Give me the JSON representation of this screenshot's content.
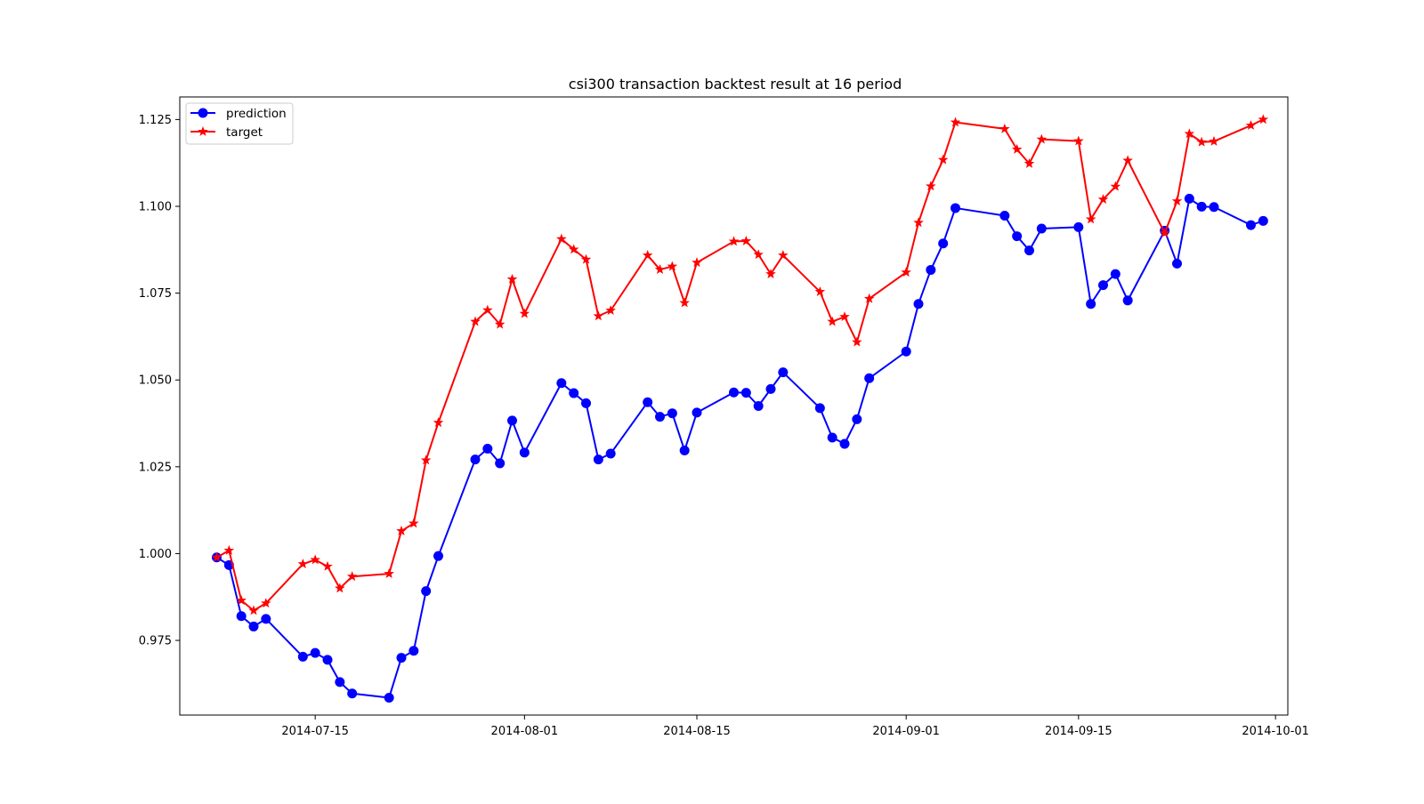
{
  "chart_data": {
    "type": "line",
    "title": "csi300 transaction backtest result at 16 period",
    "xlabel": "",
    "ylabel": "",
    "x_axis_type": "date",
    "xlim": [
      "2014-07-04",
      "2014-10-02"
    ],
    "ylim": [
      0.9535,
      1.1315
    ],
    "x_ticks": [
      "2014-07-15",
      "2014-08-01",
      "2014-08-15",
      "2014-09-01",
      "2014-09-15",
      "2014-10-01"
    ],
    "y_ticks": [
      "0.975",
      "1.000",
      "1.025",
      "1.050",
      "1.075",
      "1.100",
      "1.125"
    ],
    "grid": false,
    "legend": {
      "placement": "top-left",
      "entries": [
        "prediction",
        "target"
      ]
    },
    "colors": {
      "prediction": "#0000ff",
      "target": "#ff0000"
    },
    "series": [
      {
        "name": "prediction",
        "marker": "circle",
        "points": [
          [
            "2014-07-07",
            0.9989
          ],
          [
            "2014-07-08",
            0.9967
          ],
          [
            "2014-07-09",
            0.982
          ],
          [
            "2014-07-10",
            0.979
          ],
          [
            "2014-07-11",
            0.9812
          ],
          [
            "2014-07-14",
            0.9703
          ],
          [
            "2014-07-15",
            0.9714
          ],
          [
            "2014-07-16",
            0.9694
          ],
          [
            "2014-07-17",
            0.963
          ],
          [
            "2014-07-18",
            0.9597
          ],
          [
            "2014-07-21",
            0.9585
          ],
          [
            "2014-07-22",
            0.97
          ],
          [
            "2014-07-23",
            0.972
          ],
          [
            "2014-07-24",
            0.9892
          ],
          [
            "2014-07-25",
            0.9993
          ],
          [
            "2014-07-28",
            1.0271
          ],
          [
            "2014-07-29",
            1.0302
          ],
          [
            "2014-07-30",
            1.026
          ],
          [
            "2014-07-31",
            1.0383
          ],
          [
            "2014-08-01",
            1.0291
          ],
          [
            "2014-08-04",
            1.0491
          ],
          [
            "2014-08-05",
            1.0462
          ],
          [
            "2014-08-06",
            1.0433
          ],
          [
            "2014-08-07",
            1.0271
          ],
          [
            "2014-08-08",
            1.0288
          ],
          [
            "2014-08-11",
            1.0436
          ],
          [
            "2014-08-12",
            1.0394
          ],
          [
            "2014-08-13",
            1.0404
          ],
          [
            "2014-08-14",
            1.0297
          ],
          [
            "2014-08-15",
            1.0406
          ],
          [
            "2014-08-18",
            1.0464
          ],
          [
            "2014-08-19",
            1.0463
          ],
          [
            "2014-08-20",
            1.0425
          ],
          [
            "2014-08-21",
            1.0474
          ],
          [
            "2014-08-22",
            1.0522
          ],
          [
            "2014-08-25",
            1.0419
          ],
          [
            "2014-08-26",
            1.0334
          ],
          [
            "2014-08-27",
            1.0316
          ],
          [
            "2014-08-28",
            1.0387
          ],
          [
            "2014-08-29",
            1.0505
          ],
          [
            "2014-09-01",
            1.0582
          ],
          [
            "2014-09-02",
            1.0719
          ],
          [
            "2014-09-03",
            1.0817
          ],
          [
            "2014-09-04",
            1.0893
          ],
          [
            "2014-09-05",
            1.0995
          ],
          [
            "2014-09-09",
            1.0973
          ],
          [
            "2014-09-10",
            1.0914
          ],
          [
            "2014-09-11",
            1.0873
          ],
          [
            "2014-09-12",
            1.0936
          ],
          [
            "2014-09-15",
            1.094
          ],
          [
            "2014-09-16",
            1.0719
          ],
          [
            "2014-09-17",
            1.0773
          ],
          [
            "2014-09-18",
            1.0805
          ],
          [
            "2014-09-19",
            1.0729
          ],
          [
            "2014-09-22",
            1.093
          ],
          [
            "2014-09-23",
            1.0835
          ],
          [
            "2014-09-24",
            1.1022
          ],
          [
            "2014-09-25",
            1.0999
          ],
          [
            "2014-09-26",
            1.0998
          ],
          [
            "2014-09-29",
            1.0946
          ],
          [
            "2014-09-30",
            1.0958
          ]
        ]
      },
      {
        "name": "target",
        "marker": "star",
        "points": [
          [
            "2014-07-07",
            0.9989
          ],
          [
            "2014-07-08",
            1.0009
          ],
          [
            "2014-07-09",
            0.9865
          ],
          [
            "2014-07-10",
            0.9836
          ],
          [
            "2014-07-11",
            0.9857
          ],
          [
            "2014-07-14",
            0.997
          ],
          [
            "2014-07-15",
            0.9982
          ],
          [
            "2014-07-16",
            0.9963
          ],
          [
            "2014-07-17",
            0.99
          ],
          [
            "2014-07-18",
            0.9934
          ],
          [
            "2014-07-21",
            0.9942
          ],
          [
            "2014-07-22",
            1.0065
          ],
          [
            "2014-07-23",
            1.0087
          ],
          [
            "2014-07-24",
            1.0269
          ],
          [
            "2014-07-25",
            1.0377
          ],
          [
            "2014-07-28",
            1.0668
          ],
          [
            "2014-07-29",
            1.0701
          ],
          [
            "2014-07-30",
            1.066
          ],
          [
            "2014-07-31",
            1.079
          ],
          [
            "2014-08-01",
            1.0691
          ],
          [
            "2014-08-04",
            1.0906
          ],
          [
            "2014-08-05",
            1.0876
          ],
          [
            "2014-08-06",
            1.0847
          ],
          [
            "2014-08-07",
            1.0684
          ],
          [
            "2014-08-08",
            1.07
          ],
          [
            "2014-08-11",
            1.0859
          ],
          [
            "2014-08-12",
            1.0818
          ],
          [
            "2014-08-13",
            1.0827
          ],
          [
            "2014-08-14",
            1.0722
          ],
          [
            "2014-08-15",
            1.0838
          ],
          [
            "2014-08-18",
            1.0899
          ],
          [
            "2014-08-19",
            1.09
          ],
          [
            "2014-08-20",
            1.0861
          ],
          [
            "2014-08-21",
            1.0805
          ],
          [
            "2014-08-22",
            1.0859
          ],
          [
            "2014-08-25",
            1.0754
          ],
          [
            "2014-08-26",
            1.0668
          ],
          [
            "2014-08-27",
            1.0682
          ],
          [
            "2014-08-28",
            1.0609
          ],
          [
            "2014-08-29",
            1.0734
          ],
          [
            "2014-09-01",
            1.081
          ],
          [
            "2014-09-02",
            1.0953
          ],
          [
            "2014-09-03",
            1.1058
          ],
          [
            "2014-09-04",
            1.1134
          ],
          [
            "2014-09-05",
            1.1242
          ],
          [
            "2014-09-09",
            1.1223
          ],
          [
            "2014-09-10",
            1.1164
          ],
          [
            "2014-09-11",
            1.1123
          ],
          [
            "2014-09-12",
            1.1193
          ],
          [
            "2014-09-15",
            1.1188
          ],
          [
            "2014-09-16",
            1.0963
          ],
          [
            "2014-09-17",
            1.102
          ],
          [
            "2014-09-18",
            1.1057
          ],
          [
            "2014-09-19",
            1.1132
          ],
          [
            "2014-09-22",
            1.0923
          ],
          [
            "2014-09-23",
            1.1015
          ],
          [
            "2014-09-24",
            1.1209
          ],
          [
            "2014-09-25",
            1.1185
          ],
          [
            "2014-09-26",
            1.1187
          ],
          [
            "2014-09-29",
            1.1233
          ],
          [
            "2014-09-30",
            1.125
          ]
        ]
      }
    ]
  }
}
